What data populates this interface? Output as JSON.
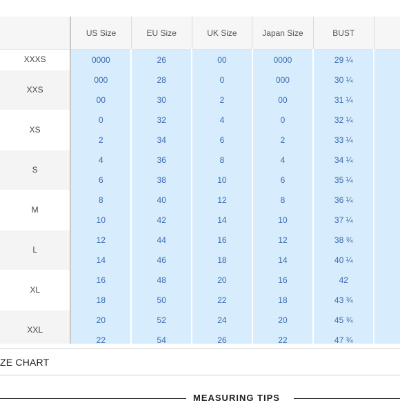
{
  "headers": [
    "US Size",
    "EU Size",
    "UK Size",
    "Japan Size",
    "BUST"
  ],
  "groups": [
    {
      "label": "XXXS",
      "rows": [
        [
          "0000",
          "26",
          "00",
          "0000",
          "29 ¼"
        ]
      ]
    },
    {
      "label": "XXS",
      "rows": [
        [
          "000",
          "28",
          "0",
          "000",
          "30 ¼"
        ],
        [
          "00",
          "30",
          "2",
          "00",
          "31 ¼"
        ]
      ]
    },
    {
      "label": "XS",
      "rows": [
        [
          "0",
          "32",
          "4",
          "0",
          "32 ¼"
        ],
        [
          "2",
          "34",
          "6",
          "2",
          "33 ¼"
        ]
      ]
    },
    {
      "label": "S",
      "rows": [
        [
          "4",
          "36",
          "8",
          "4",
          "34 ¼"
        ],
        [
          "6",
          "38",
          "10",
          "6",
          "35 ¼"
        ]
      ]
    },
    {
      "label": "M",
      "rows": [
        [
          "8",
          "40",
          "12",
          "8",
          "36 ¼"
        ],
        [
          "10",
          "42",
          "14",
          "10",
          "37 ¼"
        ]
      ]
    },
    {
      "label": "L",
      "rows": [
        [
          "12",
          "44",
          "16",
          "12",
          "38 ¾"
        ],
        [
          "14",
          "46",
          "18",
          "14",
          "40 ¼"
        ]
      ]
    },
    {
      "label": "XL",
      "rows": [
        [
          "16",
          "48",
          "20",
          "16",
          "42"
        ],
        [
          "18",
          "50",
          "22",
          "18",
          "43 ¾"
        ]
      ]
    },
    {
      "label": "XXL",
      "rows": [
        [
          "20",
          "52",
          "24",
          "20",
          "45 ¾"
        ],
        [
          "22",
          "54",
          "26",
          "22",
          "47 ¾"
        ]
      ]
    }
  ],
  "size_chart_label": "ZE CHART",
  "measuring_tips_label": "MEASURING TIPS",
  "colors": {
    "cell_bg": "#d7ecfd",
    "cell_text": "#3b6bb0",
    "header_bg": "#f6f6f6"
  }
}
